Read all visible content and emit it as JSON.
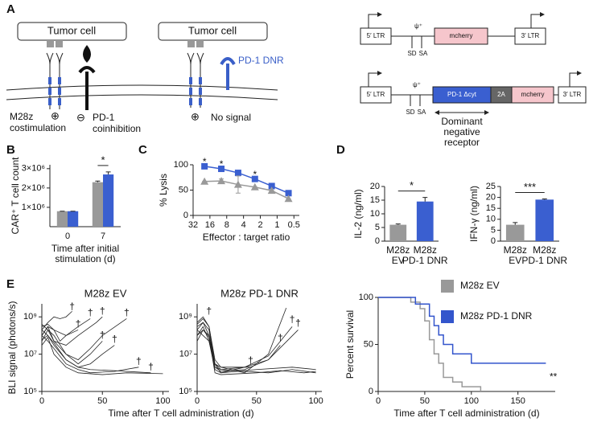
{
  "panel_labels": [
    "A",
    "B",
    "C",
    "D",
    "E"
  ],
  "schematic": {
    "tumor_cell_1": "Tumor cell",
    "tumor_cell_2": "Tumor cell",
    "costim": [
      "M28z",
      "costimulation"
    ],
    "plus_1": "⊕",
    "minus": "⊖",
    "coinhib": [
      "PD-1",
      "coinhibition"
    ],
    "dnr": "PD-1 DNR",
    "plus_2": "⊕",
    "no_signal": "No signal"
  },
  "vectors": [
    {
      "parts": [
        "5′ LTR",
        "ψ⁺",
        "mcherry",
        "3′ LTR"
      ],
      "sites": [
        "SD",
        "SA"
      ]
    },
    {
      "parts": [
        "5′ LTR",
        "ψ⁺",
        "PD-1 Δcyt",
        "2A",
        "mcherry",
        "3′ LTR"
      ],
      "sites": [
        "SD",
        "SA"
      ],
      "note": [
        "Dominant",
        "negative",
        "receptor"
      ]
    }
  ],
  "chart_data": [
    {
      "type": "bar",
      "ylabel": "CAR⁺ T cell count",
      "xlabel": [
        "Time after initial",
        "stimulation (d)"
      ],
      "categories": [
        "0",
        "7"
      ],
      "series": [
        {
          "color": "#999999",
          "values": [
            800000,
            2300000
          ],
          "errors": [
            0,
            60000
          ]
        },
        {
          "color": "#3a5fd0",
          "values": [
            800000,
            2700000
          ],
          "errors": [
            0,
            130000
          ]
        }
      ],
      "ylim": [
        0,
        3200000
      ],
      "yticks": [
        {
          "value": 1000000,
          "label": "1×10⁶"
        },
        {
          "value": 2000000,
          "label": "2×10⁶"
        },
        {
          "value": 3000000,
          "label": "3×10⁶"
        }
      ],
      "annotation": "*"
    },
    {
      "type": "line",
      "ylabel": "% Lysis",
      "xlabel": "Effector : target ratio",
      "xscale": "log",
      "x": [
        20,
        10,
        5,
        2.5,
        1.25,
        0.625
      ],
      "series": [
        {
          "color": "#3a5fd0",
          "marker": "square",
          "values": [
            97,
            92,
            84,
            72,
            58,
            44
          ]
        },
        {
          "color": "#999999",
          "marker": "triangle",
          "values": [
            67,
            68,
            61,
            56,
            49,
            33
          ],
          "errors": [
            0,
            4,
            17,
            0,
            0,
            0
          ]
        }
      ],
      "xlim": [
        32,
        0.4
      ],
      "xticks": [
        32,
        16,
        8,
        4,
        2,
        1,
        0.5
      ],
      "ylim": [
        0,
        100
      ],
      "yticks": [
        0,
        50,
        100
      ],
      "annotations": [
        {
          "text": "*",
          "x": 20,
          "y": 105
        },
        {
          "text": "*",
          "x": 10,
          "y": 100
        },
        {
          "text": "*",
          "x": 2.5,
          "y": 80
        }
      ]
    },
    {
      "type": "bar",
      "ylabel": "IL-2 (ng/ml)",
      "categories": [
        [
          "M28z",
          "EV"
        ],
        [
          "M28z",
          "PD-1 DNR"
        ]
      ],
      "series": [
        {
          "colors": [
            "#999999",
            "#3a5fd0"
          ],
          "values": [
            6,
            14.5
          ],
          "errors": [
            0.3,
            1.5
          ]
        }
      ],
      "ylim": [
        0,
        20
      ],
      "yticks": [
        0,
        5,
        10,
        15,
        20
      ],
      "annotation": "*"
    },
    {
      "type": "bar",
      "ylabel": "IFN-γ (ng/ml)",
      "categories": [
        [
          "M28z",
          "EV"
        ],
        [
          "M28z",
          "PD-1 DNR"
        ]
      ],
      "series": [
        {
          "colors": [
            "#999999",
            "#3a5fd0"
          ],
          "values": [
            7.5,
            19
          ],
          "errors": [
            1,
            0.3
          ]
        }
      ],
      "ylim": [
        0,
        25
      ],
      "yticks": [
        0,
        5,
        10,
        15,
        20,
        25
      ],
      "annotation": "***"
    },
    {
      "type": "line",
      "title": "M28z EV",
      "title_color": "#111111",
      "ylabel": "BLI signal (photons/s)",
      "xlabel": "Time after T cell administration (d)",
      "yscale": "log",
      "series": [
        {
          "color": "#222222",
          "x": [
            0,
            5,
            10,
            15,
            20,
            25
          ],
          "values": [
            200000000.0,
            500000000.0,
            1000000000.0,
            800000000.0,
            1000000000.0,
            2000000000.0
          ]
        },
        {
          "color": "#222222",
          "x": [
            0,
            5,
            10,
            20,
            30,
            40
          ],
          "values": [
            300000000.0,
            400000000.0,
            200000000.0,
            100000000.0,
            300000000.0,
            800000000.0
          ]
        },
        {
          "color": "#222222",
          "x": [
            0,
            5,
            10,
            20,
            30,
            45,
            50
          ],
          "values": [
            100000000.0,
            300000000.0,
            50000000.0,
            30000000.0,
            100000000.0,
            500000000.0,
            1000000000.0
          ]
        },
        {
          "color": "#222222",
          "x": [
            0,
            5,
            10,
            20,
            30,
            40,
            50,
            70
          ],
          "values": [
            50000000.0,
            200000000.0,
            100000000.0,
            10000000.0,
            5000000.0,
            20000000.0,
            100000000.0,
            800000000.0
          ]
        },
        {
          "color": "#222222",
          "x": [
            0,
            5,
            10,
            20,
            30,
            40,
            50,
            60
          ],
          "values": [
            200000000.0,
            100000000.0,
            30000000.0,
            5000000.0,
            2000000.0,
            3000000.0,
            10000000.0,
            30000000.0
          ]
        },
        {
          "color": "#222222",
          "x": [
            0,
            5,
            10,
            20,
            30,
            40,
            60,
            80
          ],
          "values": [
            100000000.0,
            50000000.0,
            20000000.0,
            3000000.0,
            1500000.0,
            1000000.0,
            1200000.0,
            2000000.0
          ]
        },
        {
          "color": "#222222",
          "x": [
            0,
            5,
            10,
            20,
            30,
            50,
            70,
            100
          ],
          "values": [
            30000000.0,
            80000000.0,
            10000000.0,
            2000000.0,
            1000000.0,
            800000.0,
            1000000.0,
            900000.0
          ]
        },
        {
          "color": "#222222",
          "x": [
            0,
            5,
            10,
            20,
            30,
            40,
            50
          ],
          "values": [
            400000000.0,
            200000000.0,
            50000000.0,
            10000000.0,
            3000000.0,
            10000000.0,
            50000000.0
          ]
        },
        {
          "color": "#222222",
          "x": [
            0,
            5,
            10,
            15,
            20,
            30
          ],
          "values": [
            100000000.0,
            300000000.0,
            200000000.0,
            50000000.0,
            100000000.0,
            200000000.0
          ]
        },
        {
          "color": "#222222",
          "x": [
            0,
            5,
            10,
            20,
            30,
            40,
            60,
            90
          ],
          "values": [
            60000000.0,
            100000000.0,
            40000000.0,
            5000000.0,
            2000000.0,
            1500000.0,
            1300000.0,
            1000000.0
          ]
        }
      ],
      "xlim": [
        0,
        105
      ],
      "xticks": [
        0,
        50,
        100
      ],
      "ylim": [
        100000.0,
        5000000000.0
      ],
      "yticks": [
        {
          "value": 100000.0,
          "label": "10⁵"
        },
        {
          "value": 10000000.0,
          "label": "10⁷"
        },
        {
          "value": 1000000000.0,
          "label": "10⁹"
        }
      ],
      "annotations": [
        {
          "text": "†",
          "x": 25,
          "y": 3500000000.0
        },
        {
          "text": "†",
          "x": 40,
          "y": 1600000000.0
        },
        {
          "text": "†",
          "x": 50,
          "y": 2000000000.0
        },
        {
          "text": "†",
          "x": 70,
          "y": 1600000000.0
        },
        {
          "text": "†",
          "x": 60,
          "y": 60000000.0
        },
        {
          "text": "†",
          "x": 80,
          "y": 4000000.0
        },
        {
          "text": "†",
          "x": 50,
          "y": 100000000.0
        },
        {
          "text": "†",
          "x": 30,
          "y": 400000000.0
        },
        {
          "text": "†",
          "x": 90,
          "y": 2000000.0
        }
      ]
    },
    {
      "type": "line",
      "title": "M28z PD-1 DNR",
      "title_color": "#3a5fc8",
      "yscale": "log",
      "series": [
        {
          "color": "#222222",
          "x": [
            0,
            5,
            10,
            15,
            20,
            40,
            60,
            80,
            100
          ],
          "values": [
            200000000.0,
            500000000.0,
            100000000.0,
            2000000.0,
            1500000.0,
            1200000.0,
            1000000.0,
            1500000.0,
            1000000.0
          ]
        },
        {
          "color": "#222222",
          "x": [
            0,
            5,
            10,
            15,
            20,
            40,
            60,
            75
          ],
          "values": [
            500000000.0,
            1000000000.0,
            300000000.0,
            5000000.0,
            2000000.0,
            1000000.0,
            10000000.0,
            3000000000.0
          ]
        },
        {
          "color": "#222222",
          "x": [
            0,
            5,
            10,
            15,
            20,
            40,
            60,
            80
          ],
          "values": [
            100000000.0,
            300000000.0,
            50000000.0,
            3000000.0,
            1500000.0,
            2000000.0,
            8000000.0,
            300000000.0
          ]
        },
        {
          "color": "#222222",
          "x": [
            0,
            5,
            10,
            15,
            20,
            40,
            60,
            85
          ],
          "values": [
            300000000.0,
            500000000.0,
            200000000.0,
            2000000.0,
            1200000.0,
            1500000.0,
            5000000.0,
            200000000.0
          ]
        },
        {
          "color": "#222222",
          "x": [
            0,
            5,
            10,
            15,
            20,
            40,
            60,
            70
          ],
          "values": [
            200000000.0,
            100000000.0,
            50000000.0,
            1500000.0,
            1000000.0,
            2000000.0,
            5000000.0,
            30000000.0
          ]
        },
        {
          "color": "#222222",
          "x": [
            0,
            5,
            10,
            15,
            20,
            50,
            70,
            90,
            100
          ],
          "values": [
            100000000.0,
            200000000.0,
            80000000.0,
            1000000.0,
            800000.0,
            1000000.0,
            1300000.0,
            1000000.0,
            1200000.0
          ]
        },
        {
          "color": "#222222",
          "x": [
            0,
            5,
            10,
            15,
            20,
            50,
            80,
            100
          ],
          "values": [
            400000000.0,
            800000000.0,
            300000000.0,
            3000000.0,
            1000000.0,
            1500000.0,
            2000000.0,
            1500000.0
          ]
        },
        {
          "color": "#222222",
          "x": [
            0,
            5,
            10,
            15,
            20,
            45
          ],
          "values": [
            50000000.0,
            200000000.0,
            100000000.0,
            3000000.0,
            2000000.0,
            2000000.0
          ]
        }
      ],
      "xlim": [
        0,
        105
      ],
      "xticks": [
        0,
        50,
        100
      ],
      "ylim": [
        100000.0,
        5000000000.0
      ],
      "yticks": [
        {
          "value": 100000.0,
          "label": "10⁵"
        },
        {
          "value": 10000000.0,
          "label": "10⁷"
        },
        {
          "value": 1000000000.0,
          "label": "10⁹"
        }
      ],
      "annotations": [
        {
          "text": "†",
          "x": 10,
          "y": 2000000000.0
        },
        {
          "text": "†",
          "x": 80,
          "y": 700000000.0
        },
        {
          "text": "†",
          "x": 85,
          "y": 450000000.0
        },
        {
          "text": "†",
          "x": 70,
          "y": 70000000.0
        },
        {
          "text": "†",
          "x": 45,
          "y": 4500000.0
        }
      ]
    },
    {
      "type": "line",
      "drawstyle": "steps",
      "ylabel": "Percent survival",
      "xlabel": "Time after T cell administration (d)",
      "legend": "top",
      "series": [
        {
          "name": "M28z EV",
          "color": "#999999",
          "x": [
            0,
            25,
            35,
            45,
            50,
            55,
            60,
            65,
            70,
            80,
            90,
            100,
            110
          ],
          "values": [
            100,
            100,
            95,
            88,
            75,
            55,
            40,
            30,
            15,
            10,
            5,
            5,
            0
          ]
        },
        {
          "name": "M28z PD-1 DNR",
          "color": "#3355cc",
          "x": [
            0,
            40,
            50,
            55,
            60,
            65,
            70,
            80,
            100,
            180
          ],
          "values": [
            100,
            93,
            93,
            80,
            70,
            60,
            50,
            40,
            30,
            30
          ]
        }
      ],
      "xlim": [
        0,
        190
      ],
      "xticks": [
        0,
        50,
        100,
        150
      ],
      "ylim": [
        0,
        100
      ],
      "yticks": [
        0,
        50,
        100
      ],
      "annotations": [
        {
          "text": "**",
          "x": 188,
          "y": 15
        }
      ]
    }
  ]
}
